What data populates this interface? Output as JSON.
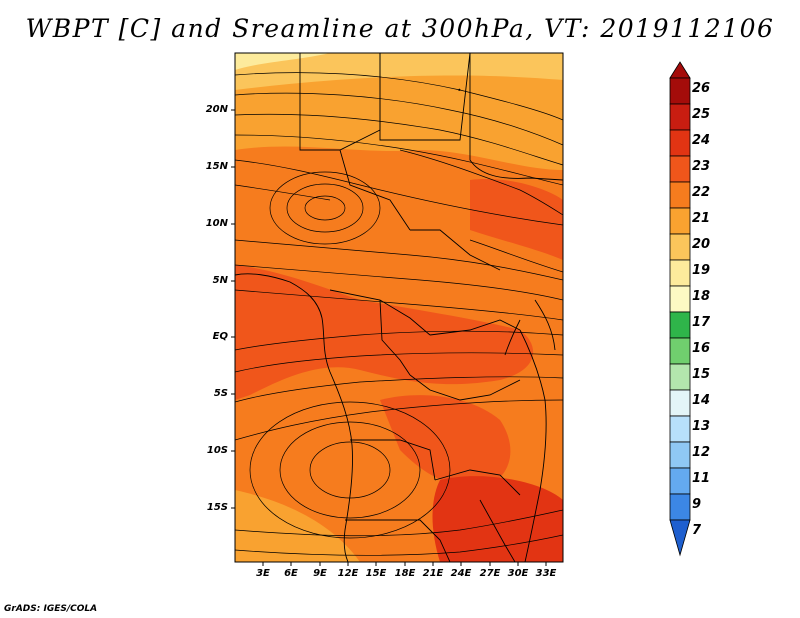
{
  "title": "WBPT [C] and Sreamline at 300hPa, VT: 2019112106",
  "footer": "GrADS: IGES/COLA",
  "map": {
    "lat_labels": [
      "20N",
      "15N",
      "10N",
      "5N",
      "EQ",
      "5S",
      "10S",
      "15S"
    ],
    "lon_labels": [
      "3E",
      "6E",
      "9E",
      "12E",
      "15E",
      "18E",
      "21E",
      "24E",
      "27E",
      "30E",
      "33E"
    ],
    "field_colors": {
      "20": "#fdc75a",
      "21": "#f9a436",
      "22": "#f57a1d",
      "23": "#ee5a18",
      "24": "#e53516"
    }
  },
  "colorbar": {
    "labels": [
      "26",
      "25",
      "24",
      "23",
      "22",
      "21",
      "20",
      "19",
      "18",
      "17",
      "16",
      "15",
      "14",
      "13",
      "12",
      "11",
      "9",
      "7"
    ],
    "colors": [
      "#a40c0a",
      "#c81d11",
      "#e23413",
      "#f0561b",
      "#f67c1e",
      "#f9a230",
      "#fbc55b",
      "#fdeb9c",
      "#fdf9c3",
      "#2fb54a",
      "#70cf6e",
      "#b3e6ad",
      "#e3f5f8",
      "#b7e0fb",
      "#8fc8f5",
      "#64aaf0",
      "#3c87e5",
      "#1e5fcf"
    ]
  }
}
